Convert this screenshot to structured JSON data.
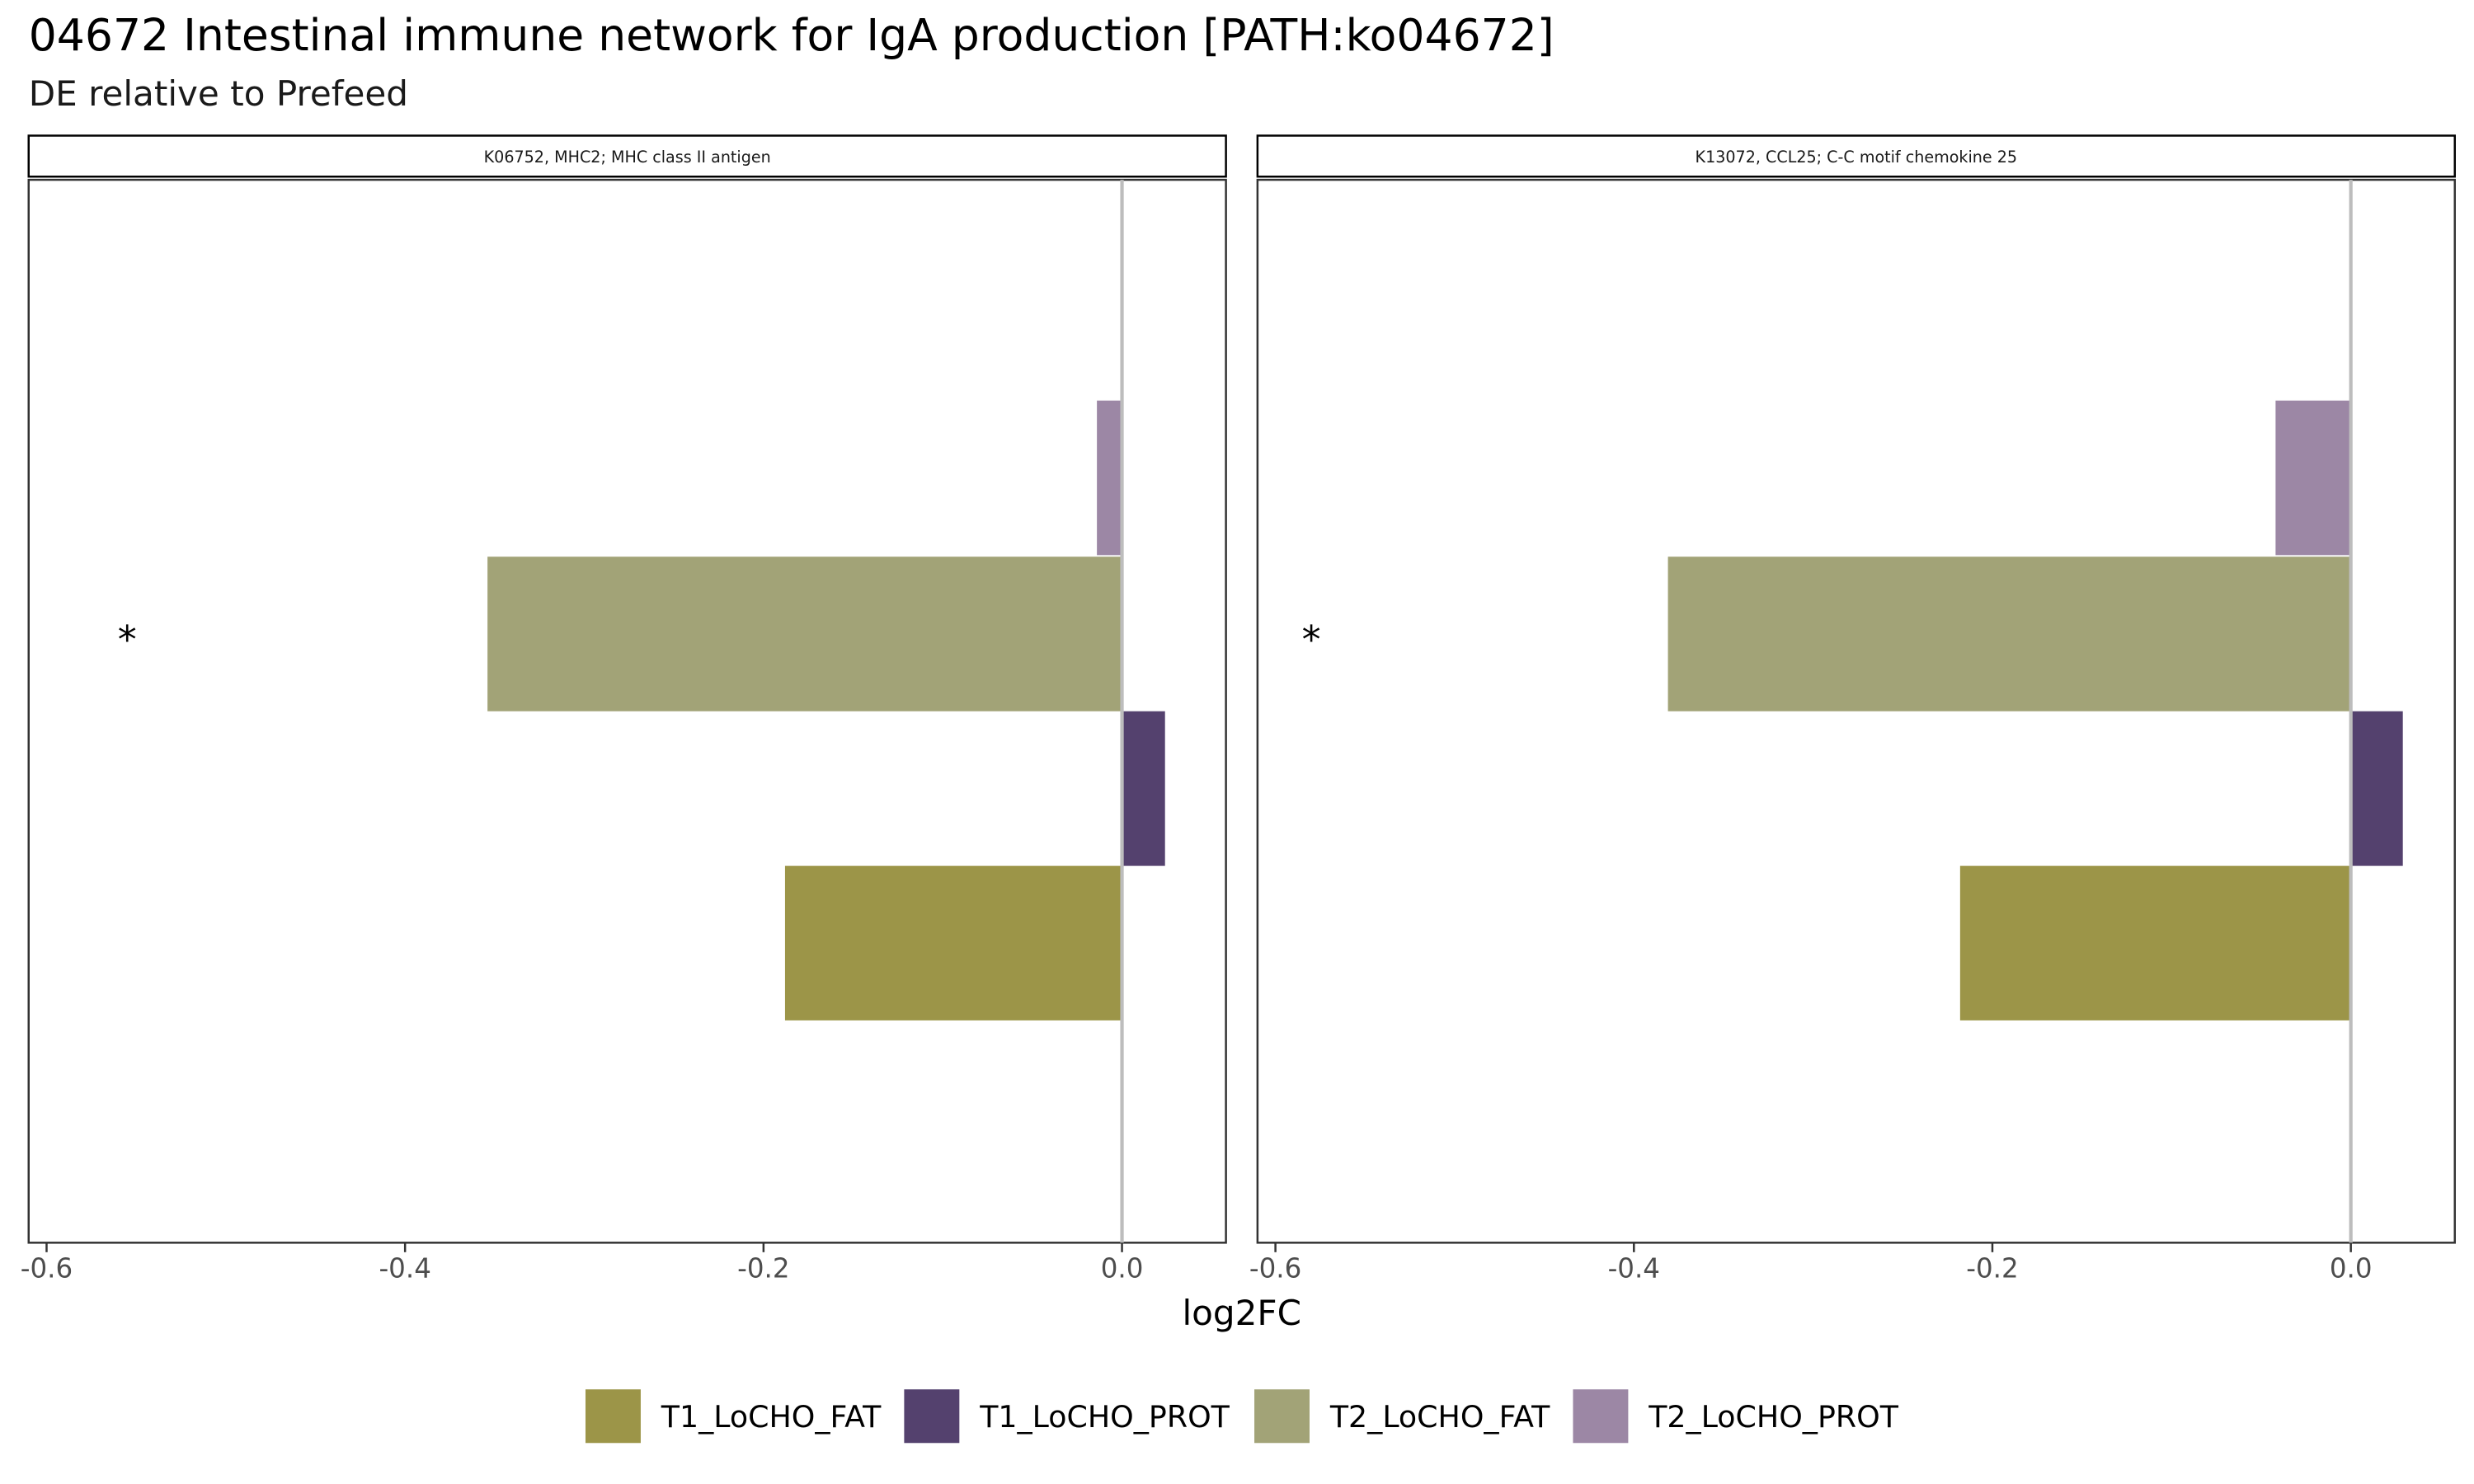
{
  "chart_title": "04672 Intestinal immune network for IgA production [PATH:ko04672]",
  "chart_subtitle": "DE relative to Prefeed",
  "chart_data": {
    "type": "bar",
    "orientation": "horizontal",
    "title": "04672 Intestinal immune network for IgA production [PATH:ko04672]",
    "subtitle": "DE relative to Prefeed",
    "xlabel": "log2FC",
    "ylabel": "",
    "xlim": [
      -0.61,
      0.058
    ],
    "x_ticks": [
      -0.6,
      -0.4,
      -0.2,
      0.0
    ],
    "x_tick_labels": [
      "-0.6",
      "-0.4",
      "-0.2",
      "0.0"
    ],
    "grid": false,
    "legend_position": "bottom",
    "series": [
      {
        "name": "T1_LoCHO_FAT",
        "color": "#9c9548"
      },
      {
        "name": "T1_LoCHO_PROT",
        "color": "#54416e"
      },
      {
        "name": "T2_LoCHO_FAT",
        "color": "#a2a377"
      },
      {
        "name": "T2_LoCHO_PROT",
        "color": "#9c87a5"
      }
    ],
    "panels": [
      {
        "strip": "K06752, MHC2; MHC class II antigen",
        "values": {
          "T1_LoCHO_FAT": -0.188,
          "T1_LoCHO_PROT": 0.024,
          "T2_LoCHO_FAT": -0.354,
          "T2_LoCHO_PROT": -0.014
        },
        "annotations": [
          {
            "text": "*",
            "x": -0.555,
            "series": "T2_LoCHO_FAT"
          }
        ]
      },
      {
        "strip": "K13072, CCL25; C-C motif chemokine 25",
        "values": {
          "T1_LoCHO_FAT": -0.218,
          "T1_LoCHO_PROT": 0.029,
          "T2_LoCHO_FAT": -0.381,
          "T2_LoCHO_PROT": -0.042
        },
        "annotations": [
          {
            "text": "*",
            "x": -0.58,
            "series": "T2_LoCHO_FAT"
          }
        ]
      }
    ]
  }
}
